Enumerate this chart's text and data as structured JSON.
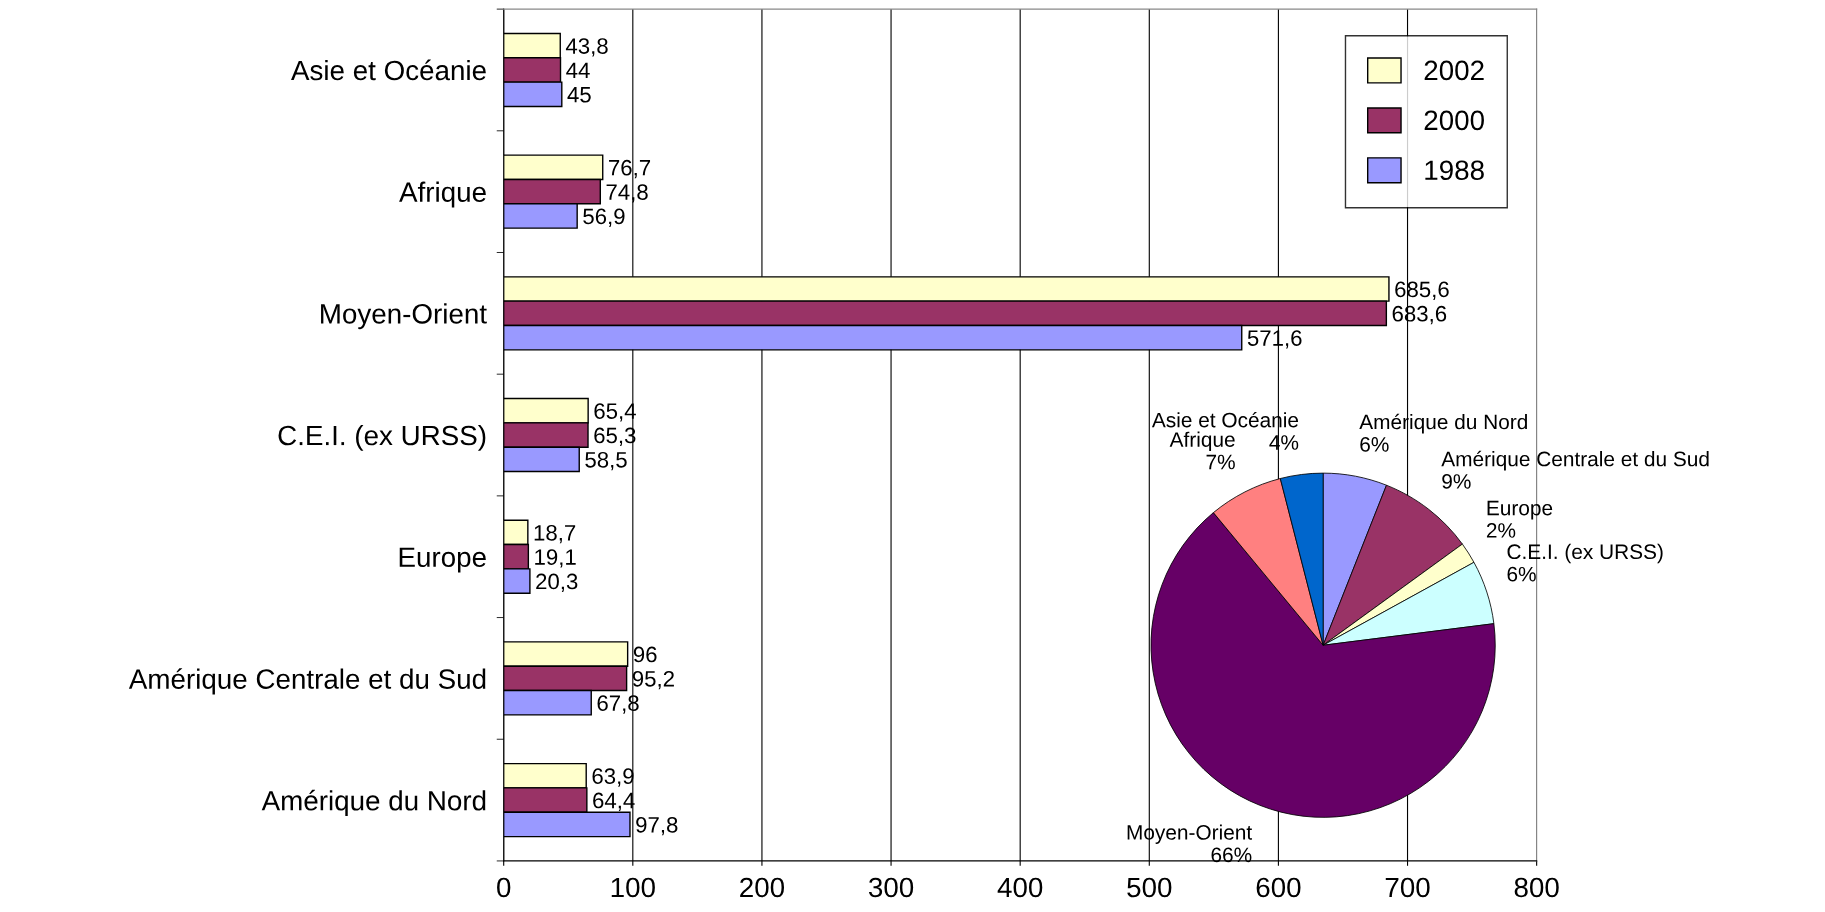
{
  "chart_data": [
    {
      "type": "bar",
      "orientation": "horizontal",
      "categories": [
        "Asie et Océanie",
        "Afrique",
        "Moyen-Orient",
        "C.E.I. (ex URSS)",
        "Europe",
        "Amérique Centrale et du Sud",
        "Amérique du Nord"
      ],
      "series": [
        {
          "name": "2002",
          "color": "#ffffcc",
          "values": [
            43.8,
            76.7,
            685.6,
            65.4,
            18.7,
            96,
            63.9
          ],
          "value_labels": [
            "43,8",
            "76,7",
            "685,6",
            "65,4",
            "18,7",
            "96",
            "63,9"
          ]
        },
        {
          "name": "2000",
          "color": "#993366",
          "values": [
            44,
            74.8,
            683.6,
            65.3,
            19.1,
            95.2,
            64.4
          ],
          "value_labels": [
            "44",
            "74,8",
            "683,6",
            "65,3",
            "19,1",
            "95,2",
            "64,4"
          ]
        },
        {
          "name": "1988",
          "color": "#9999ff",
          "values": [
            45,
            56.9,
            571.6,
            58.5,
            20.3,
            67.8,
            97.8
          ],
          "value_labels": [
            "45",
            "56,9",
            "571,6",
            "58,5",
            "20,3",
            "67,8",
            "97,8"
          ]
        }
      ],
      "xlim": [
        0,
        800
      ],
      "xticks": [
        0,
        100,
        200,
        300,
        400,
        500,
        600,
        700,
        800
      ],
      "grid": "x",
      "legend": "top right"
    },
    {
      "type": "pie",
      "categories": [
        "Amérique du Nord",
        "Amérique Centrale et du Sud",
        "Europe",
        "C.E.I. (ex URSS)",
        "Moyen-Orient",
        "Afrique",
        "Asie et Océanie"
      ],
      "values": [
        6,
        9,
        2,
        6,
        66,
        7,
        4
      ],
      "value_labels": [
        "6%",
        "9%",
        "2%",
        "6%",
        "66%",
        "7%",
        "4%"
      ],
      "colors": [
        "#9999ff",
        "#993366",
        "#ffffcc",
        "#ccffff",
        "#660066",
        "#ff8080",
        "#0066cc"
      ]
    }
  ]
}
